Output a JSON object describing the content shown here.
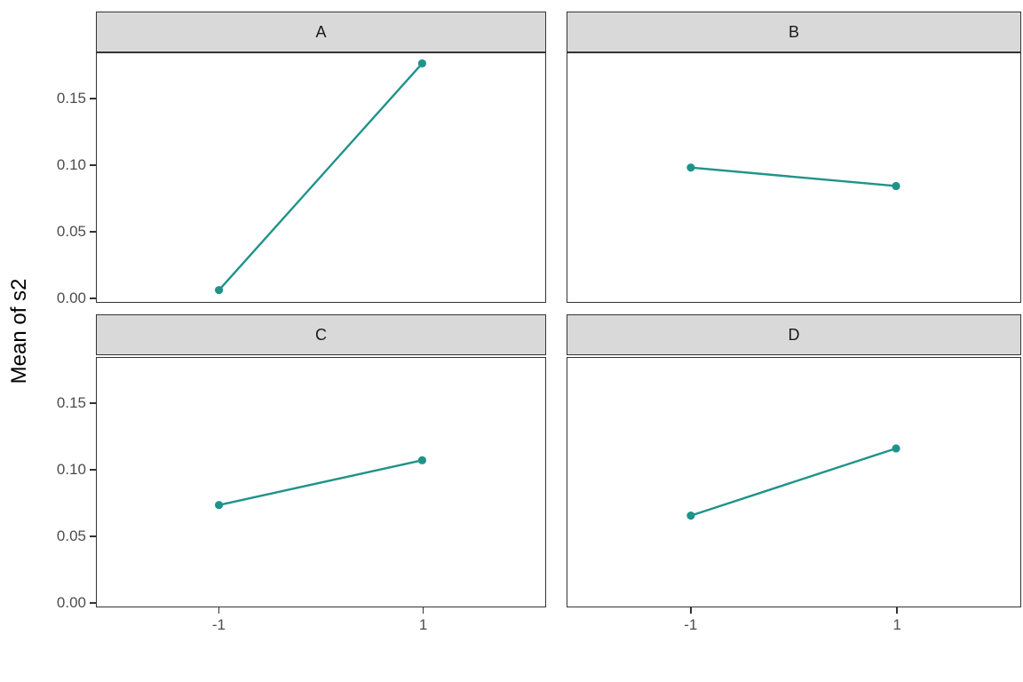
{
  "figure": {
    "ylabel": "Mean of s2",
    "colors": {
      "line": "#1f938a",
      "strip_background": "#d9d9d9",
      "panel_border": "#333333",
      "tick_label": "#4d4d4d",
      "strip_label": "#1a1a1a"
    }
  },
  "chart_data": {
    "type": "line",
    "description": "2x2 faceted interaction plot (ggplot style), one teal line with two points per facet",
    "facet_layout": [
      "A",
      "B",
      "C",
      "D"
    ],
    "x_type": "factor",
    "categories": [
      "-1",
      "1"
    ],
    "series": [
      {
        "name": "A",
        "values": [
          0.005,
          0.177
        ]
      },
      {
        "name": "B",
        "values": [
          0.098,
          0.084
        ]
      },
      {
        "name": "C",
        "values": [
          0.073,
          0.107
        ]
      },
      {
        "name": "D",
        "values": [
          0.065,
          0.116
        ]
      }
    ],
    "title": "",
    "xlabel": "",
    "ylabel": "Mean of s2",
    "y_ticks": [
      "0.00",
      "0.05",
      "0.10",
      "0.15"
    ],
    "ylim": [
      -0.0033,
      0.1847
    ],
    "grid": "off",
    "legend": "none"
  }
}
